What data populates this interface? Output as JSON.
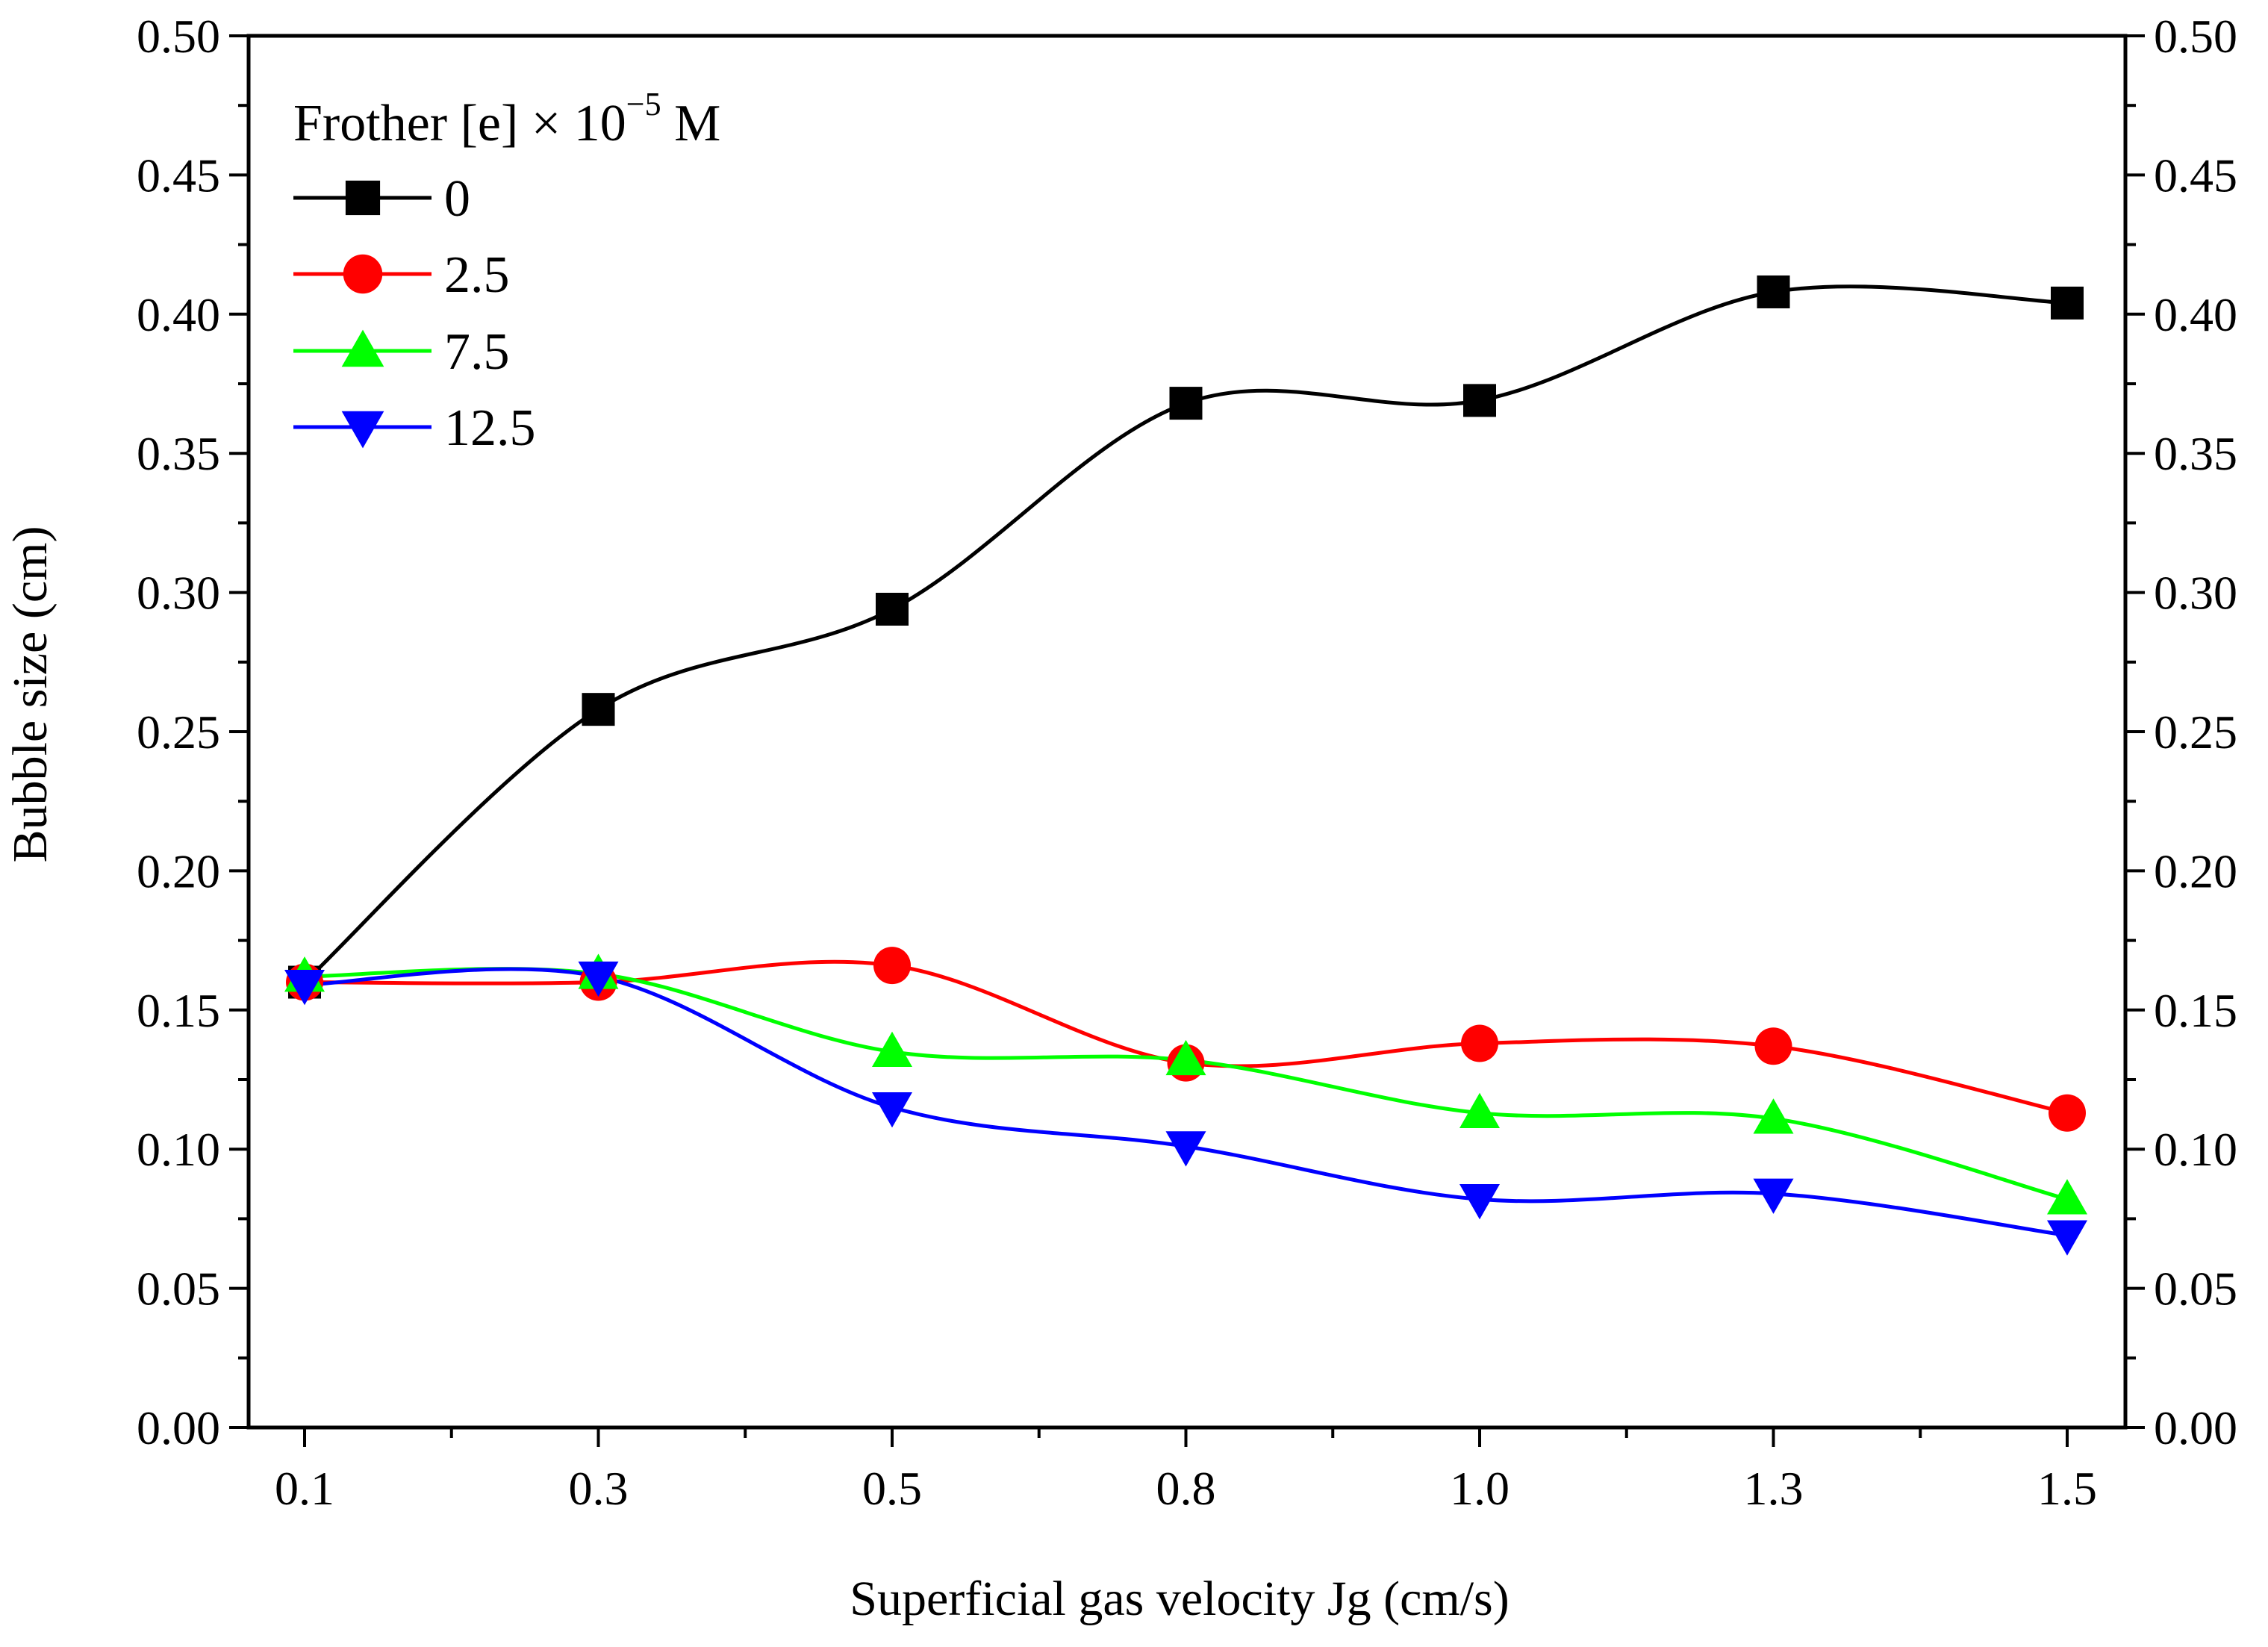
{
  "chart_data": {
    "type": "line",
    "title": "",
    "xlabel": "Superficial gas velocity Jg (cm/s)",
    "ylabel": "Bubble size (cm)",
    "categories": [
      "0.1",
      "0.3",
      "0.5",
      "0.8",
      "1.0",
      "1.3",
      "1.5"
    ],
    "ylim": [
      0,
      0.5
    ],
    "yticks": [
      "0.00",
      "0.05",
      "0.10",
      "0.15",
      "0.20",
      "0.25",
      "0.30",
      "0.35",
      "0.40",
      "0.45",
      "0.50"
    ],
    "y2ticks": [
      "0.00",
      "0.05",
      "0.10",
      "0.15",
      "0.20",
      "0.25",
      "0.30",
      "0.35",
      "0.40",
      "0.45",
      "0.50"
    ],
    "grid": false,
    "legend": {
      "title_prefix": "Frother [e] × 10",
      "title_exponent": "−5",
      "title_suffix": " M",
      "placement": "top-left"
    },
    "series": [
      {
        "name": "0",
        "color": "#000000",
        "marker": "square",
        "values": [
          0.16,
          0.258,
          0.294,
          0.368,
          0.369,
          0.408,
          0.404
        ]
      },
      {
        "name": "2.5",
        "color": "#ff0000",
        "marker": "circle",
        "values": [
          0.16,
          0.16,
          0.166,
          0.131,
          0.138,
          0.137,
          0.113
        ]
      },
      {
        "name": "7.5",
        "color": "#00ff00",
        "marker": "triangle-up",
        "values": [
          0.162,
          0.163,
          0.135,
          0.132,
          0.113,
          0.111,
          0.082
        ]
      },
      {
        "name": "12.5",
        "color": "#0000ff",
        "marker": "triangle-down",
        "values": [
          0.159,
          0.162,
          0.115,
          0.101,
          0.082,
          0.084,
          0.069
        ]
      }
    ]
  }
}
